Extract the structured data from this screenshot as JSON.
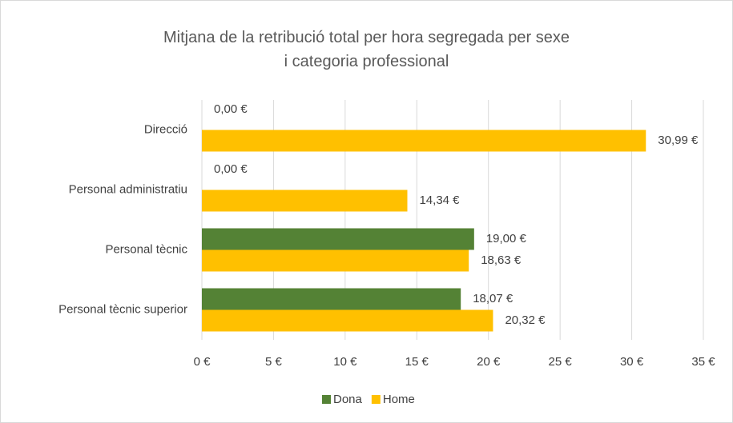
{
  "chart_data": {
    "type": "hbar",
    "title": "Mitjana de la retribució total per hora segregada per sexe i categoria professional",
    "categories": [
      "Direcció",
      "Personal administratiu",
      "Personal tècnic",
      "Personal tècnic superior"
    ],
    "series": [
      {
        "name": "Dona",
        "color": "#548235",
        "values": [
          0,
          0,
          19.0,
          18.07
        ],
        "value_labels": [
          "0,00 €",
          "0,00 €",
          "19,00 €",
          "18,07 €"
        ]
      },
      {
        "name": "Home",
        "color": "#FFC000",
        "values": [
          30.99,
          14.34,
          18.63,
          20.32
        ],
        "value_labels": [
          "30,99 €",
          "14,34 €",
          "18,63 €",
          "20,32 €"
        ]
      }
    ],
    "xlim": [
      0,
      35
    ],
    "xticks": [
      {
        "value": 0,
        "label": "0 €"
      },
      {
        "value": 5,
        "label": "5 €"
      },
      {
        "value": 10,
        "label": "10 €"
      },
      {
        "value": 15,
        "label": "15 €"
      },
      {
        "value": 20,
        "label": "20 €"
      },
      {
        "value": 25,
        "label": "25 €"
      },
      {
        "value": 30,
        "label": "30 €"
      },
      {
        "value": 35,
        "label": "35 €"
      }
    ],
    "grid": true,
    "legend": "bottom"
  }
}
